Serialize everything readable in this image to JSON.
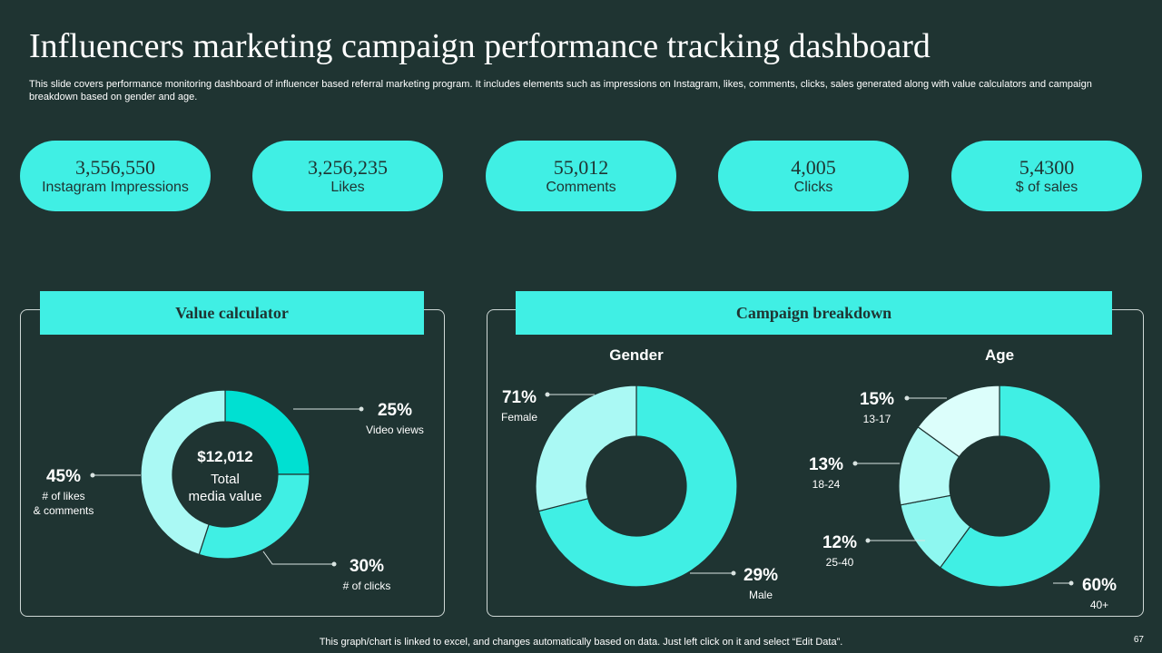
{
  "title": "Influencers marketing campaign performance tracking dashboard",
  "subtitle": "This slide covers performance monitoring dashboard of influencer based referral marketing program. It includes elements such as impressions on Instagram, likes, comments, clicks, sales generated along with value calculators and campaign breakdown based on gender and age.",
  "kpis": [
    {
      "value": "3,556,550",
      "label": "Instagram Impressions"
    },
    {
      "value": "3,256,235",
      "label": "Likes"
    },
    {
      "value": "55,012",
      "label": "Comments"
    },
    {
      "value": "4,005",
      "label": "Clicks"
    },
    {
      "value": "5,4300",
      "label": "$ of sales"
    }
  ],
  "value_calculator": {
    "heading": "Value calculator",
    "center_value": "$12,012",
    "center_label_1": "Total",
    "center_label_2": "media value"
  },
  "campaign_breakdown": {
    "heading": "Campaign breakdown",
    "gender_title": "Gender",
    "age_title": "Age"
  },
  "chart_data": [
    {
      "type": "pie",
      "id": "value-calculator",
      "title": "Value calculator",
      "donut": true,
      "categories": [
        "Video views",
        "# of clicks",
        "# of likes & comments"
      ],
      "category_lines": [
        [
          "Video views"
        ],
        [
          "# of clicks"
        ],
        [
          "# of likes",
          "& comments"
        ]
      ],
      "values": [
        25,
        30,
        45
      ],
      "labels": [
        "25%",
        "30%",
        "45%"
      ],
      "colors": [
        "#00e0d2",
        "#40efe4",
        "#aaf9f4"
      ]
    },
    {
      "type": "pie",
      "id": "gender",
      "title": "Gender",
      "donut": true,
      "categories": [
        "Female",
        "Male"
      ],
      "values": [
        71,
        29
      ],
      "labels": [
        "71%",
        "29%"
      ],
      "colors": [
        "#40efe4",
        "#aaf9f4"
      ]
    },
    {
      "type": "pie",
      "id": "age",
      "title": "Age",
      "donut": true,
      "categories": [
        "40+",
        "25-40",
        "18-24",
        "13-17"
      ],
      "values": [
        60,
        12,
        13,
        15
      ],
      "labels": [
        "60%",
        "12%",
        "13%",
        "15%"
      ],
      "colors": [
        "#40efe4",
        "#8ef7f0",
        "#b6fbf6",
        "#dcfefb"
      ]
    }
  ],
  "footer": "This graph/chart is linked to excel,  and changes automatically based on data. Just left click on it and select “Edit Data”.",
  "page_number": "67"
}
